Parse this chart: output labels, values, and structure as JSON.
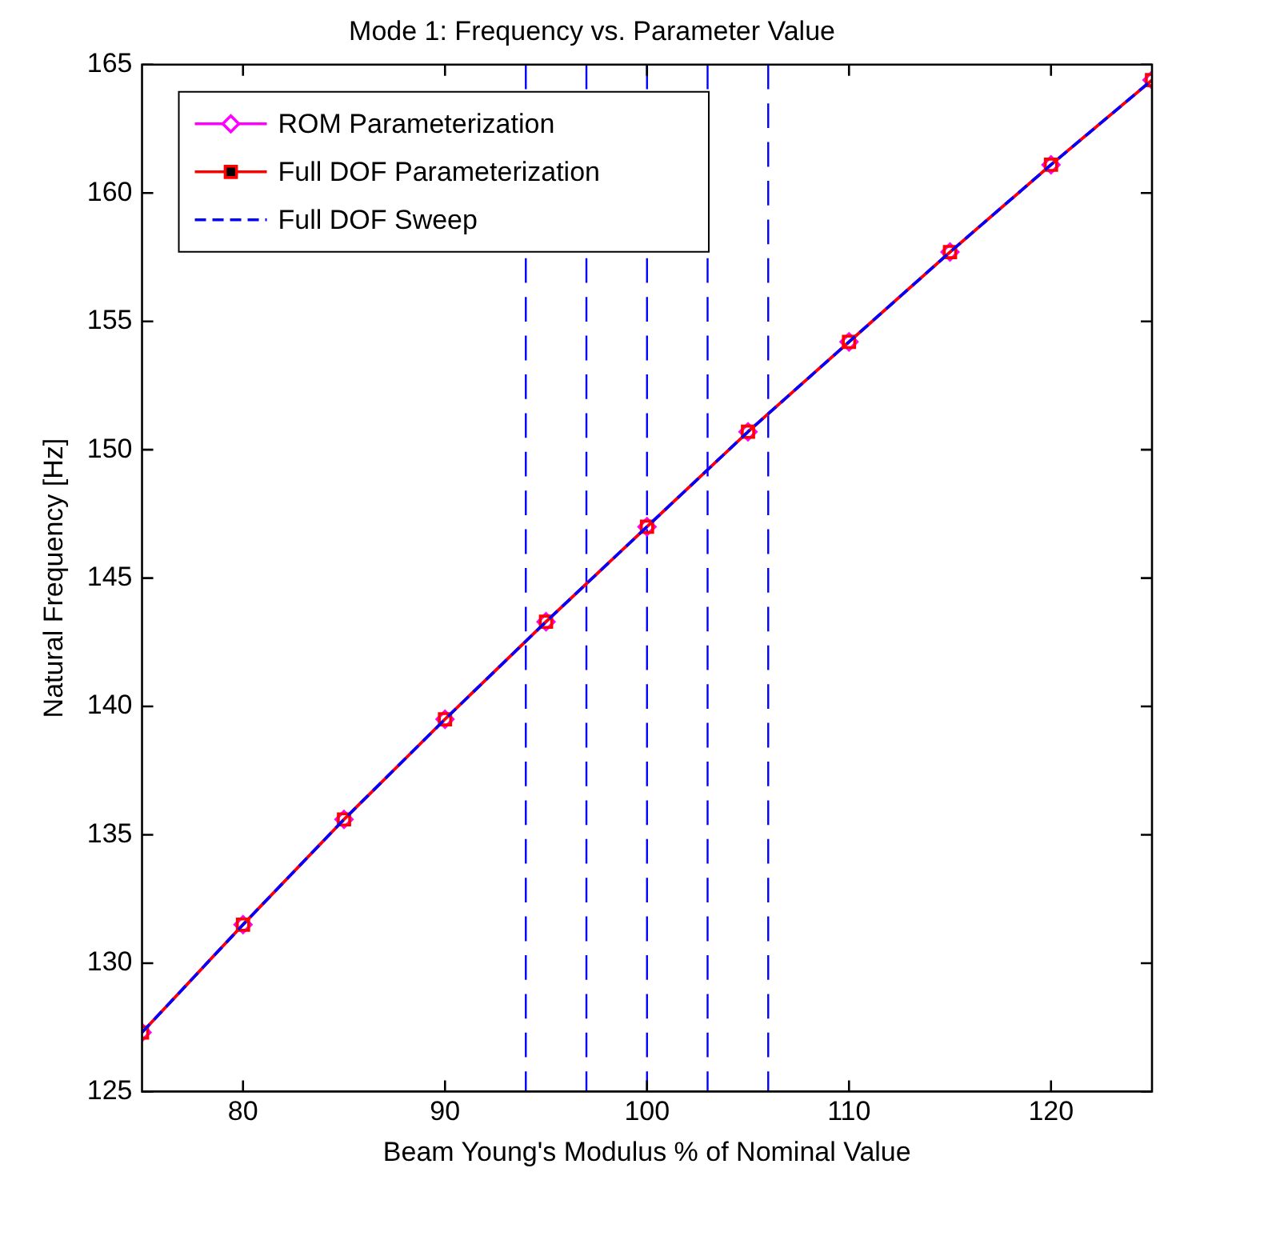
{
  "chart_data": {
    "type": "line",
    "title": "Mode 1: Frequency vs. Parameter Value",
    "xlabel": "Beam Young's Modulus % of Nominal Value",
    "ylabel": "Natural Frequency [Hz]",
    "x": [
      75,
      80,
      85,
      90,
      95,
      100,
      105,
      110,
      115,
      120,
      125
    ],
    "series": [
      {
        "name": "ROM Parameterization",
        "color": "#ff00ff",
        "marker": "diamond",
        "line_style": "solid",
        "values": [
          127.3,
          131.5,
          135.6,
          139.5,
          143.3,
          147.0,
          150.7,
          154.2,
          157.7,
          161.1,
          164.4
        ]
      },
      {
        "name": "Full DOF Parameterization",
        "color": "#ff0000",
        "marker": "square",
        "line_style": "solid",
        "values": [
          127.3,
          131.5,
          135.6,
          139.5,
          143.3,
          147.0,
          150.7,
          154.2,
          157.7,
          161.1,
          164.4
        ]
      },
      {
        "name": "Full DOF Sweep",
        "color": "#0000ff",
        "marker": "none",
        "line_style": "dashed",
        "values": [
          127.3,
          131.5,
          135.6,
          139.5,
          143.3,
          147.0,
          150.7,
          154.2,
          157.7,
          161.1,
          164.4
        ]
      }
    ],
    "ref_lines": [
      {
        "axis": "x",
        "value": 94,
        "color": "#0000ff",
        "line_style": "dashed"
      },
      {
        "axis": "x",
        "value": 97,
        "color": "#0000ff",
        "line_style": "dashed"
      },
      {
        "axis": "x",
        "value": 100,
        "color": "#0000ff",
        "line_style": "dashed"
      },
      {
        "axis": "x",
        "value": 103,
        "color": "#0000ff",
        "line_style": "dashed"
      },
      {
        "axis": "x",
        "value": 106,
        "color": "#0000ff",
        "line_style": "dashed"
      }
    ],
    "xlim": [
      75,
      125
    ],
    "xticks": [
      80,
      90,
      100,
      110,
      120
    ],
    "ylim": [
      125,
      165
    ],
    "yticks": [
      125,
      130,
      135,
      140,
      145,
      150,
      155,
      160,
      165
    ],
    "grid": false,
    "legend": "top left"
  }
}
